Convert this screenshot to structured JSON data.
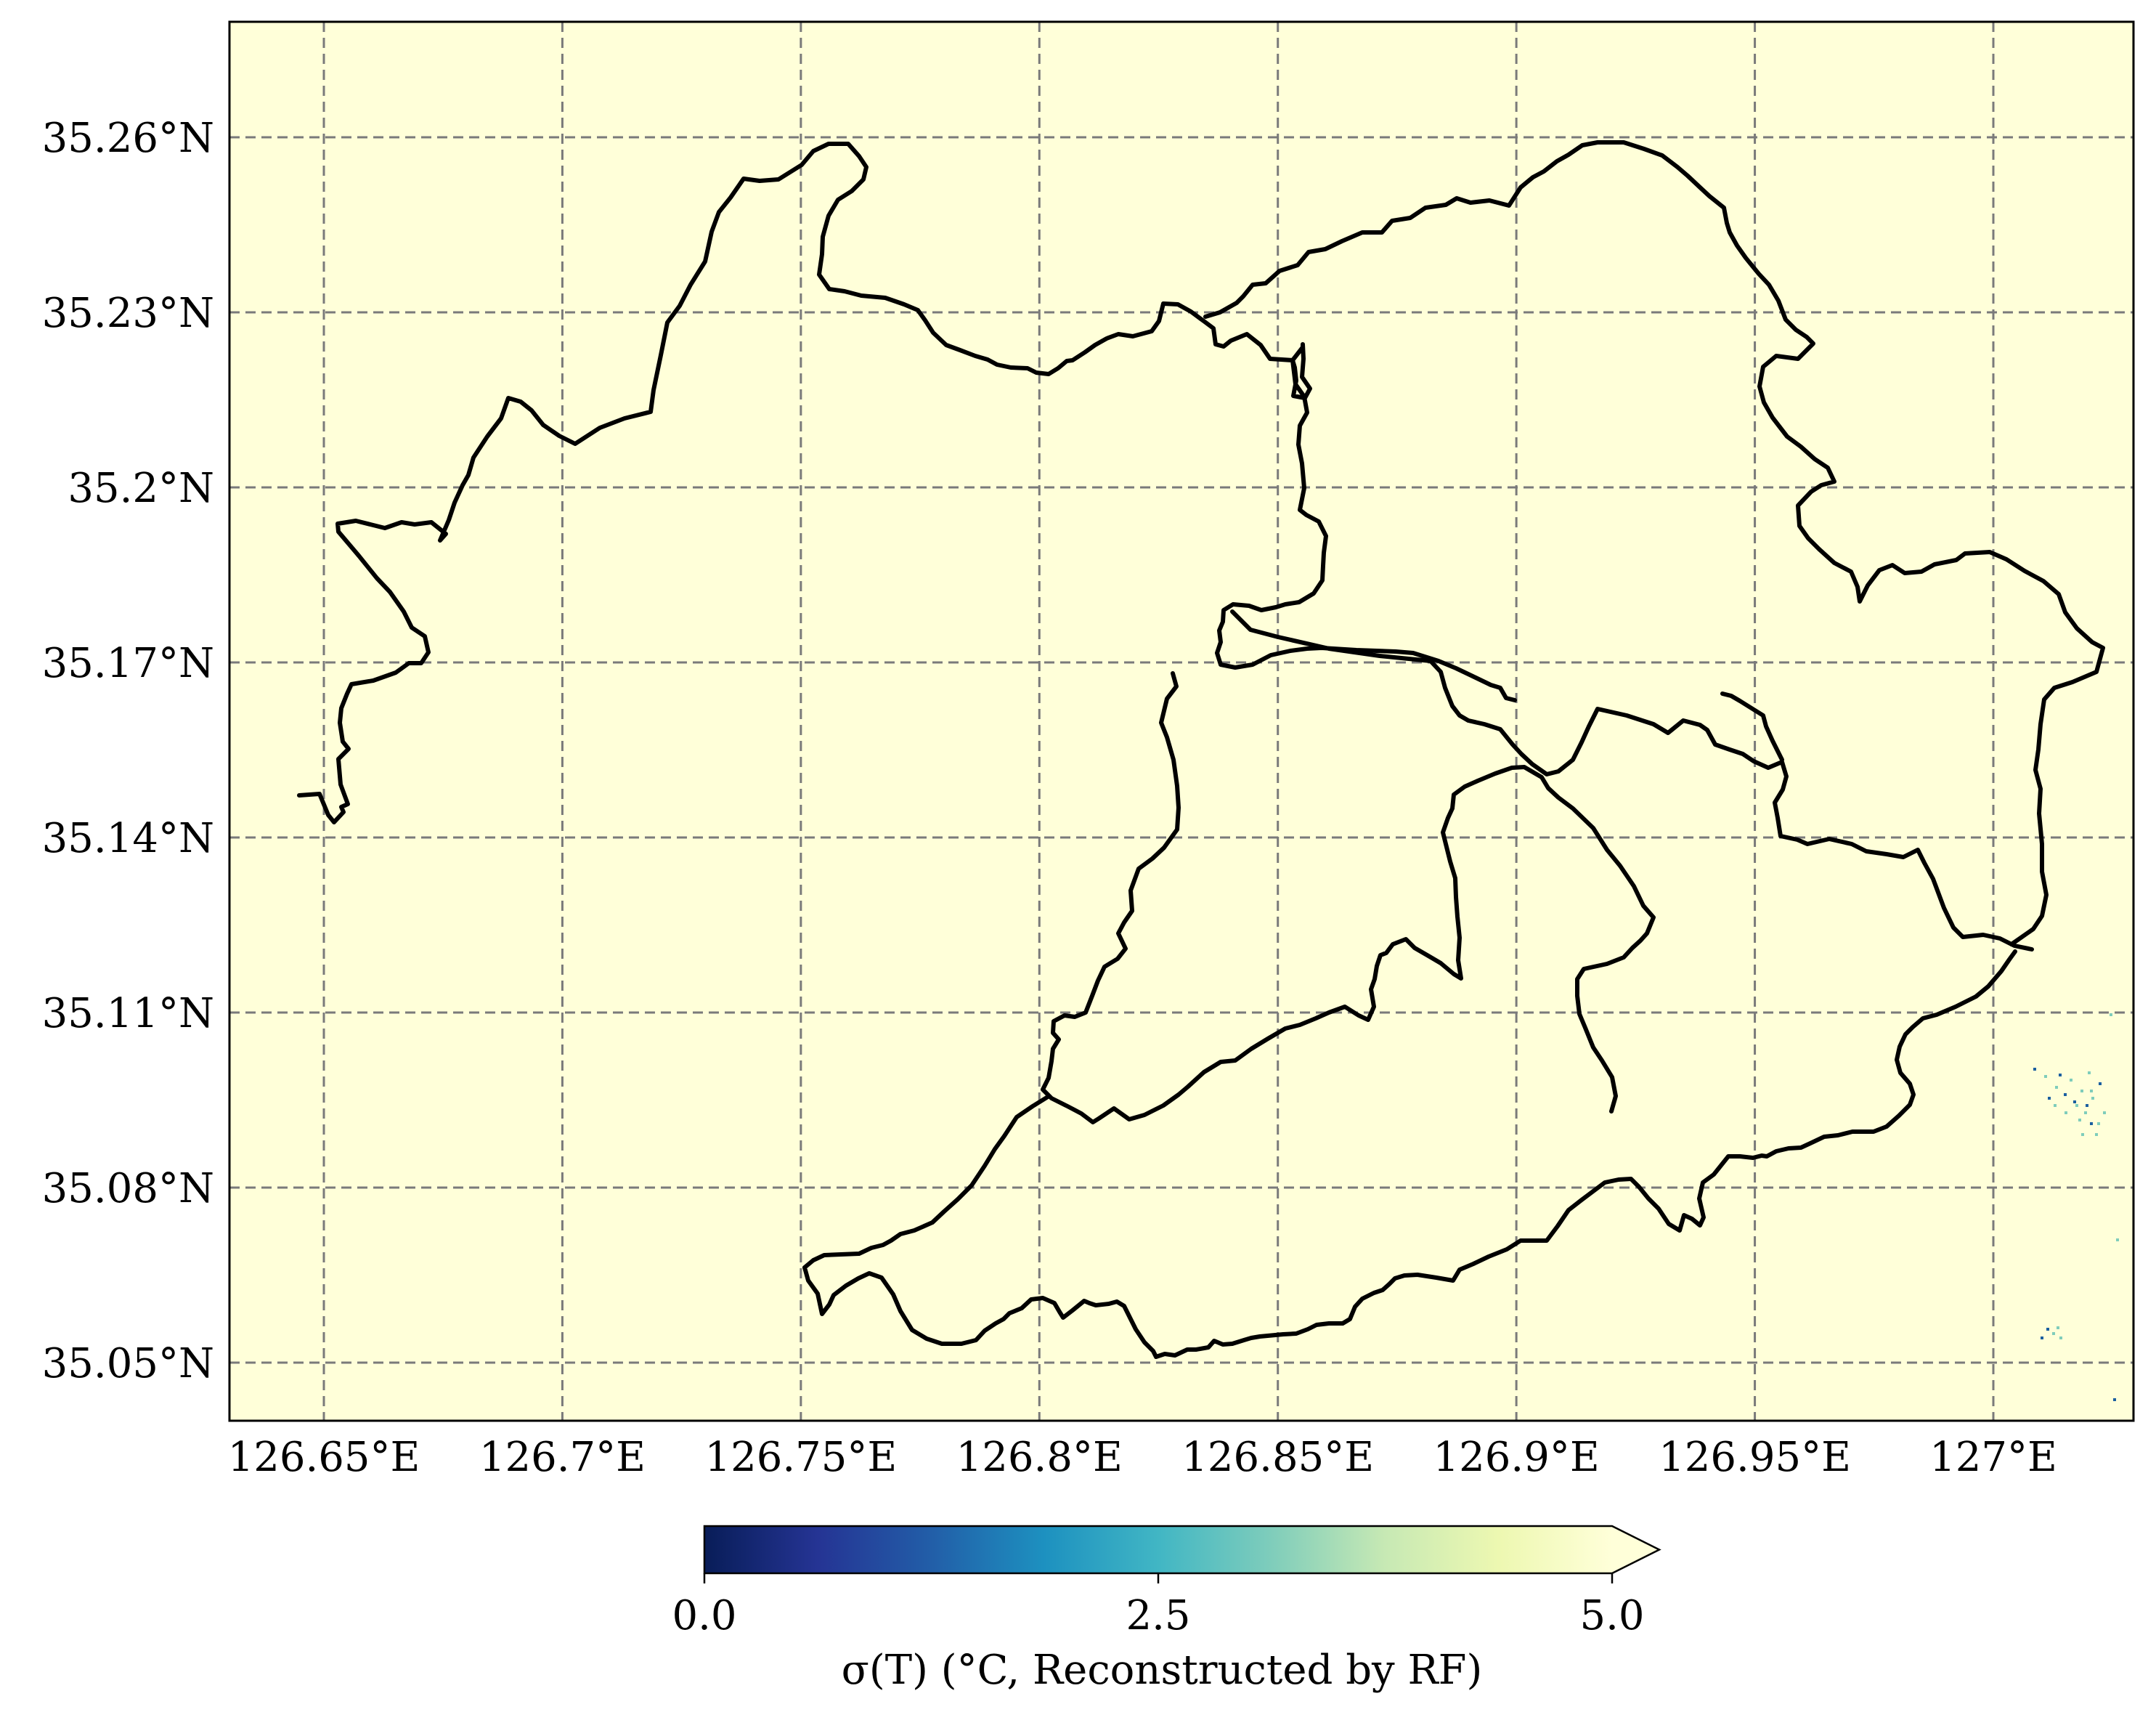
{
  "map": {
    "colors": {
      "background": "#ffffd9",
      "boundary": "#000000",
      "grid": "#7a7a7a",
      "speckle": "#1b5fa0"
    },
    "lon_ticks": [
      {
        "value": 126.65,
        "label": "126.65°E"
      },
      {
        "value": 126.7,
        "label": "126.7°E"
      },
      {
        "value": 126.75,
        "label": "126.75°E"
      },
      {
        "value": 126.8,
        "label": "126.8°E"
      },
      {
        "value": 126.85,
        "label": "126.85°E"
      },
      {
        "value": 126.9,
        "label": "126.9°E"
      },
      {
        "value": 126.95,
        "label": "126.95°E"
      },
      {
        "value": 127.0,
        "label": "127°E"
      }
    ],
    "lat_ticks": [
      {
        "value": 35.26,
        "label": "35.26°N"
      },
      {
        "value": 35.23,
        "label": "35.23°N"
      },
      {
        "value": 35.2,
        "label": "35.2°N"
      },
      {
        "value": 35.17,
        "label": "35.17°N"
      },
      {
        "value": 35.14,
        "label": "35.14°N"
      },
      {
        "value": 35.11,
        "label": "35.11°N"
      },
      {
        "value": 35.08,
        "label": "35.08°N"
      },
      {
        "value": 35.05,
        "label": "35.05°N"
      }
    ],
    "grid": true
  },
  "colorbar": {
    "min": 0.0,
    "max": 5.0,
    "ticks": [
      "0.0",
      "2.5",
      "5.0"
    ],
    "extend": "max",
    "colormap": [
      "#081d58",
      "#253494",
      "#225ea8",
      "#1d91c0",
      "#41b6c4",
      "#7fcdbb",
      "#c7e9b4",
      "#edf8b1",
      "#ffffd9"
    ],
    "label": "σ(T) (°C, Reconstructed by RF)"
  }
}
